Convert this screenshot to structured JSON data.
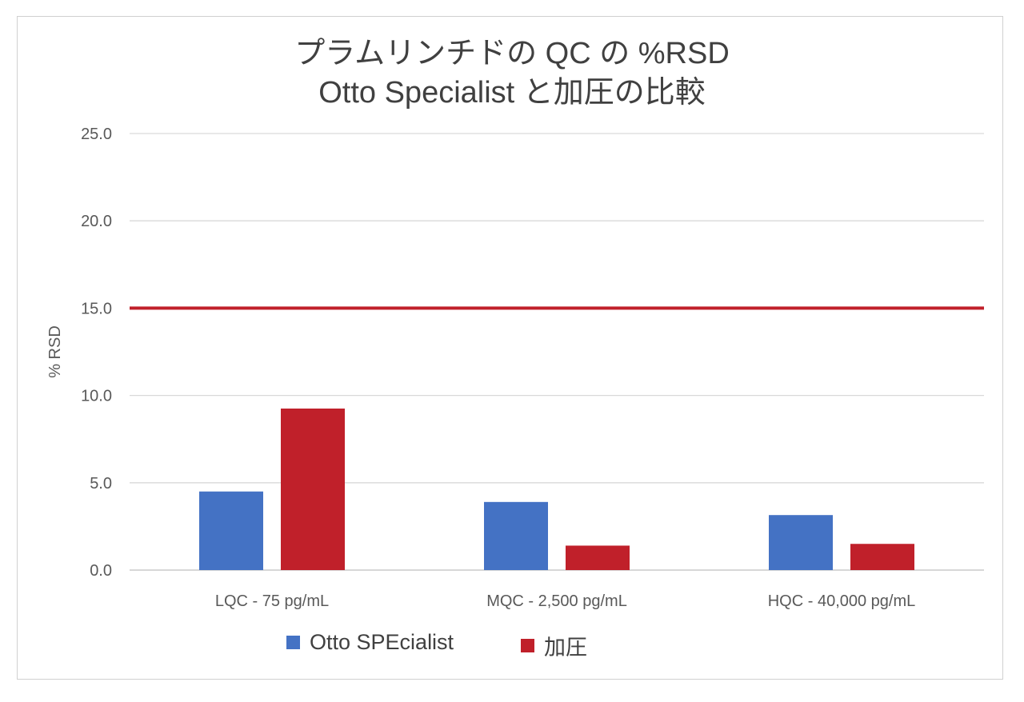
{
  "chart_data": {
    "type": "bar",
    "title": "プラムリンチドの QC の %RSD",
    "subtitle": "Otto Specialist と加圧の比較",
    "ylabel": "% RSD",
    "xlabel": "",
    "ylim": [
      0,
      25
    ],
    "yticks": [
      "0.0",
      "5.0",
      "10.0",
      "15.0",
      "20.0",
      "25.0"
    ],
    "ytick_values": [
      0,
      5,
      10,
      15,
      20,
      25
    ],
    "categories": [
      "LQC - 75 pg/mL",
      "MQC - 2,500 pg/mL",
      "HQC - 40,000 pg/mL"
    ],
    "series": [
      {
        "name": "Otto SPEcialist",
        "color": "#4472c4",
        "values": [
          4.5,
          3.9,
          3.15
        ]
      },
      {
        "name": "加圧",
        "color": "#c0202a",
        "values": [
          9.25,
          1.4,
          1.5
        ]
      }
    ],
    "reference_line": {
      "value": 15.0,
      "color": "#c0202a"
    },
    "grid": true,
    "legend_position": "bottom"
  }
}
